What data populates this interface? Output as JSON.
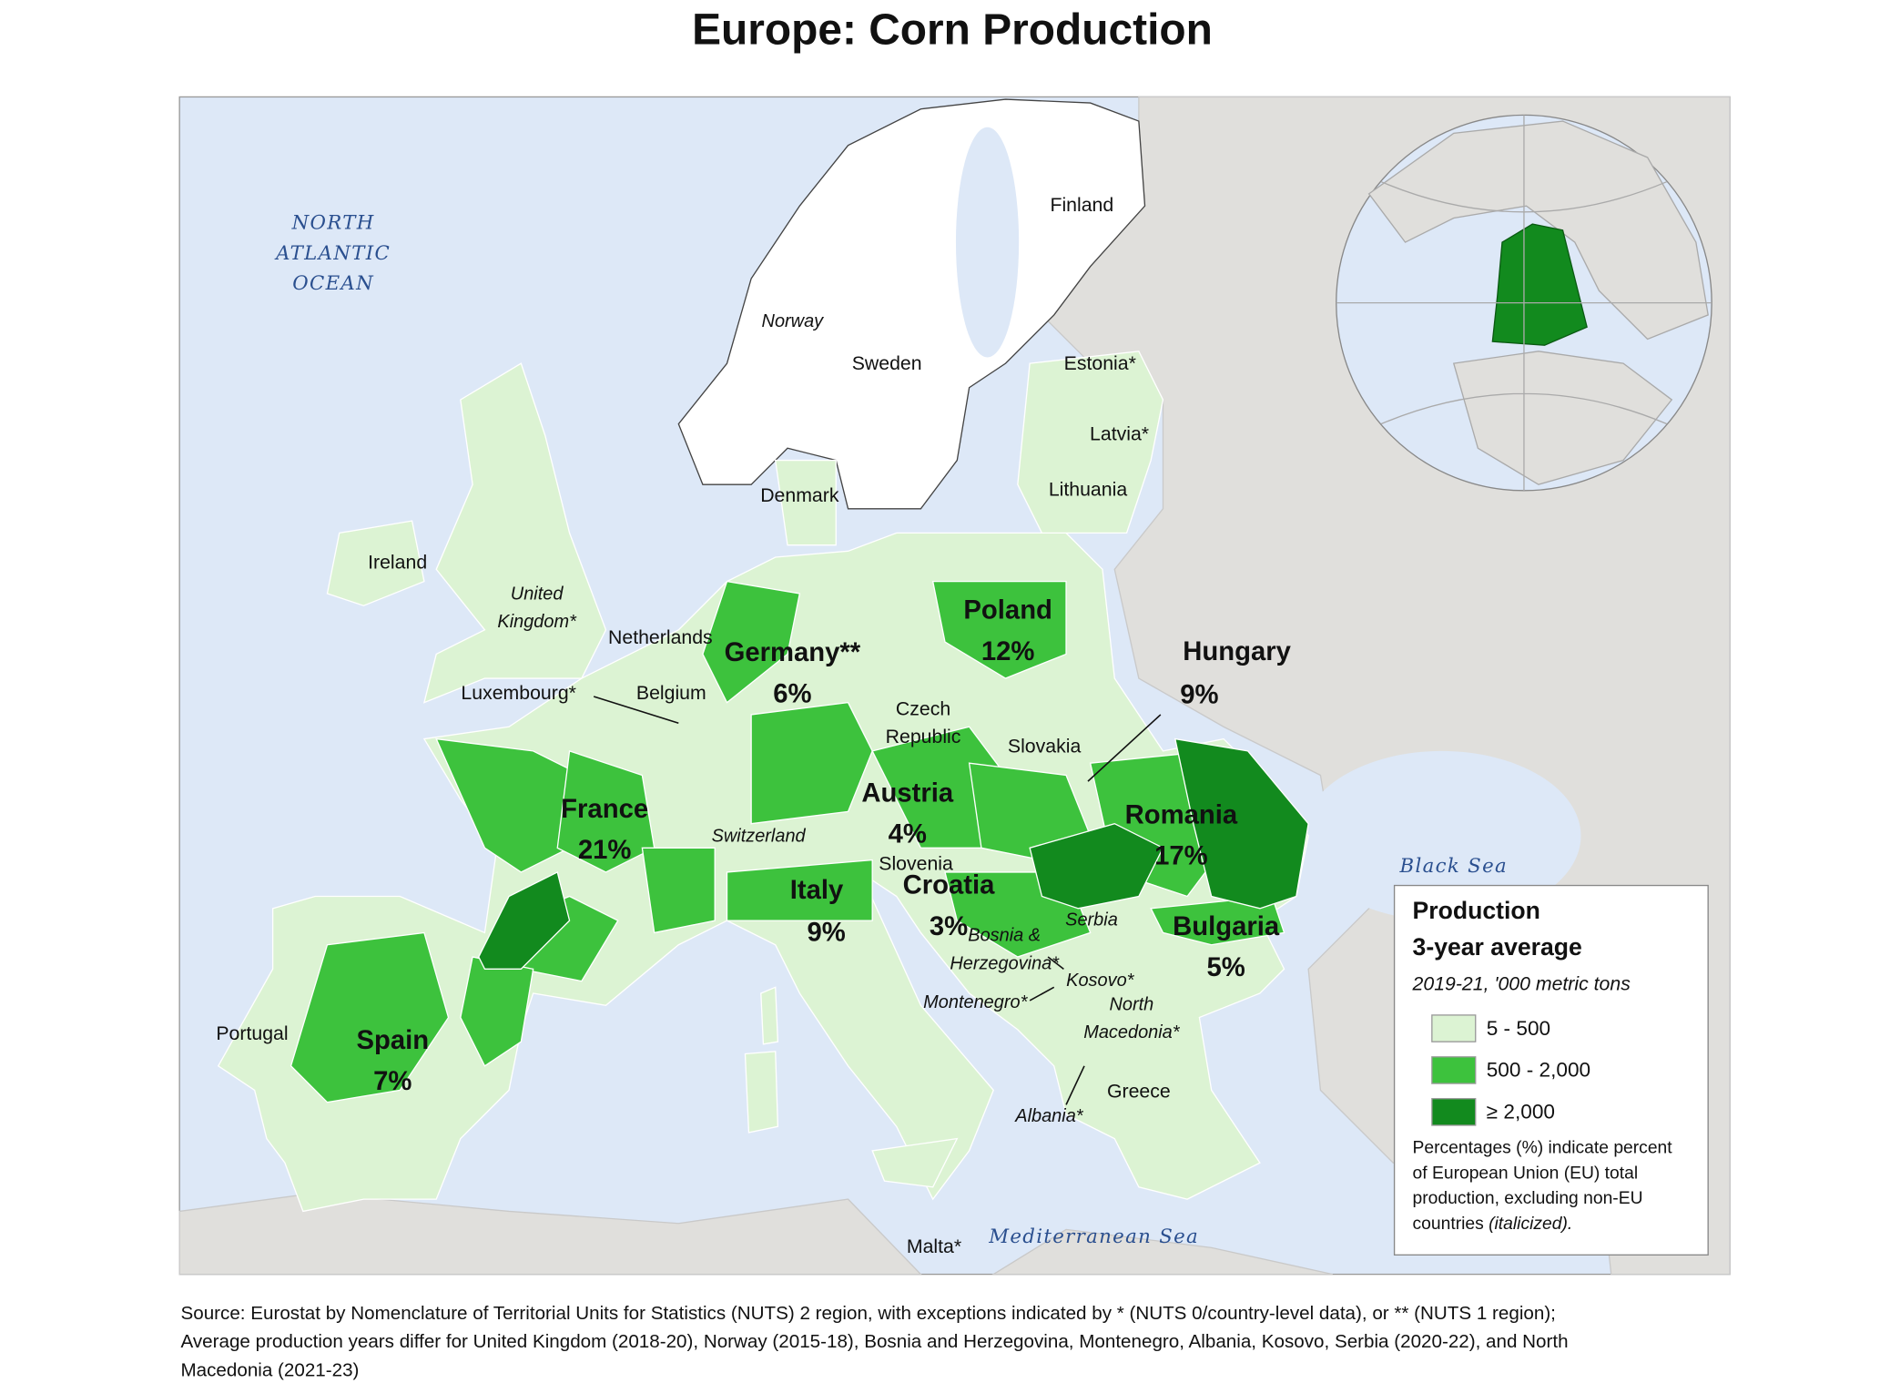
{
  "title": "Europe: Corn Production",
  "water": {
    "ocean": [
      "NORTH",
      "ATLANTIC",
      "OCEAN"
    ],
    "black_sea": "Black Sea",
    "mediterranean": "Mediterranean Sea"
  },
  "countries": [
    {
      "name": "Finland"
    },
    {
      "name": "Norway"
    },
    {
      "name": "Sweden"
    },
    {
      "name": "Estonia*"
    },
    {
      "name": "Latvia*"
    },
    {
      "name": "Lithuania"
    },
    {
      "name": "Denmark"
    },
    {
      "name": "Ireland"
    },
    {
      "name": [
        "United",
        "Kingdom*"
      ]
    },
    {
      "name": "Netherlands"
    },
    {
      "name": "Germany**",
      "share": "6%"
    },
    {
      "name": "Poland",
      "share": "12%"
    },
    {
      "name": "Hungary",
      "share": "9%"
    },
    {
      "name": "Luxembourg*"
    },
    {
      "name": "Belgium"
    },
    {
      "name": [
        "Czech",
        "Republic"
      ]
    },
    {
      "name": "Slovakia"
    },
    {
      "name": "Austria",
      "share": "4%"
    },
    {
      "name": "France",
      "share": "21%"
    },
    {
      "name": "Switzerland"
    },
    {
      "name": "Slovenia"
    },
    {
      "name": "Romania",
      "share": "17%"
    },
    {
      "name": "Italy",
      "share": "9%"
    },
    {
      "name": "Croatia",
      "share": "3%"
    },
    {
      "name": [
        "Bosnia &",
        "Herzegovina*"
      ]
    },
    {
      "name": "Serbia"
    },
    {
      "name": "Bulgaria",
      "share": "5%"
    },
    {
      "name": "Kosovo*"
    },
    {
      "name": "Montenegro*"
    },
    {
      "name": [
        "North",
        "Macedonia*"
      ]
    },
    {
      "name": "Portugal"
    },
    {
      "name": "Spain",
      "share": "7%"
    },
    {
      "name": "Greece"
    },
    {
      "name": "Albania*"
    },
    {
      "name": "Malta*"
    }
  ],
  "legend": {
    "title": "Production",
    "subtitle": "3-year average",
    "period": "2019-21, '000 metric tons",
    "classes": [
      {
        "label": "5 - 500",
        "color": "#dcf3d3"
      },
      {
        "label": "500 - 2,000",
        "color": "#3dc23d"
      },
      {
        "label": "≥ 2,000",
        "color": "#128a1e"
      }
    ],
    "note": [
      "Percentages (%) indicate percent",
      "of European Union (EU) total",
      "production, excluding non-EU",
      "countries"
    ],
    "note_italic": "(italicized)."
  },
  "source": [
    "Source: Eurostat by Nomenclature of Territorial Units for Statistics (NUTS) 2 region, with exceptions indicated by * (NUTS 0/country-level data), or ** (NUTS 1 region);",
    "Average production years differ for United Kingdom (2018-20), Norway (2015-18), Bosnia and Herzegovina, Montenegro, Albania, Kosovo, Serbia (2020-22), and North",
    "Macedonia (2021-23)"
  ]
}
